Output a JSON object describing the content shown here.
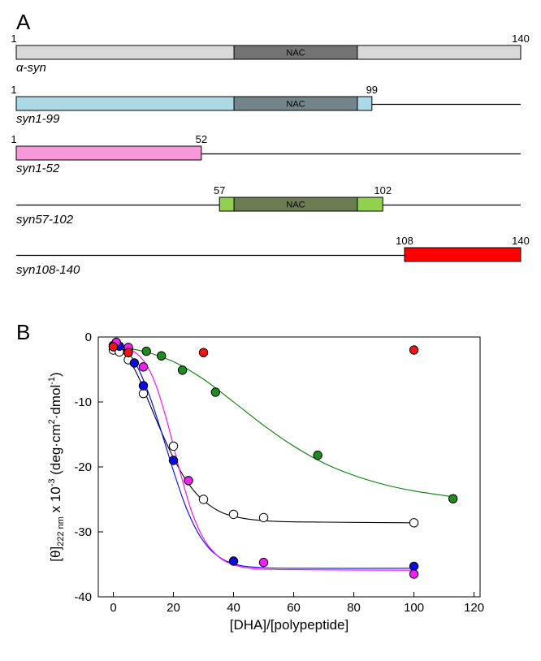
{
  "panel_a": {
    "letter": "A",
    "constructs": [
      {
        "name": "α-syn",
        "start_label": "1",
        "end_label": "140",
        "color": "#d9d9d9",
        "box": [
          1,
          140
        ],
        "nac": [
          61,
          95
        ],
        "nac_color": "#737373",
        "nac_label": "NAC",
        "baseline": false
      },
      {
        "name": "syn1-99",
        "start_label": "1",
        "end_label": "99",
        "color": "#add8e6",
        "box": [
          1,
          99
        ],
        "nac": [
          61,
          95
        ],
        "nac_color": "#73858a",
        "nac_label": "NAC",
        "baseline": true
      },
      {
        "name": "syn1-52",
        "start_label": "1",
        "end_label": "52",
        "color": "#f799d8",
        "box": [
          1,
          52
        ],
        "nac": null,
        "baseline": true
      },
      {
        "name": "syn57-102",
        "start_label": "57",
        "end_label": "102",
        "color": "#92d050",
        "box": [
          57,
          102
        ],
        "nac": [
          61,
          95
        ],
        "nac_color": "#6b7b52",
        "nac_label": "NAC",
        "baseline": true
      },
      {
        "name": "syn108-140",
        "start_label": "108",
        "end_label": "140",
        "color": "#ff0000",
        "box": [
          108,
          140
        ],
        "nac": null,
        "baseline": true
      }
    ]
  },
  "chart_data": {
    "letter": "B",
    "type": "scatter",
    "xlabel": "[DHA]/[polypeptide]",
    "ylabel": "[θ]",
    "ylabel_sub": "222 nm",
    "ylabel_rest": " x 10",
    "ylabel_exp": "-3",
    "ylabel_units": " (deg·cm",
    "ylabel_units_exp": "2",
    "ylabel_units2": "·dmol",
    "ylabel_units2_exp": "-1",
    "ylabel_close": ")",
    "xlim": [
      -5,
      122
    ],
    "ylim": [
      -40,
      0
    ],
    "xticks": [
      0,
      20,
      40,
      60,
      80,
      100,
      120
    ],
    "yticks": [
      0,
      -10,
      -20,
      -30,
      -40
    ],
    "grid": false,
    "series": [
      {
        "color": "#008000",
        "fill": "#1e8c1e",
        "line": "#008000",
        "points": [
          [
            0,
            -1.5
          ],
          [
            5,
            -1.8
          ],
          [
            11,
            -2.2
          ],
          [
            16,
            -2.9
          ],
          [
            23,
            -5.1
          ],
          [
            34,
            -8.5
          ],
          [
            68,
            -18.2
          ],
          [
            113,
            -24.9
          ]
        ],
        "curve": [
          [
            0,
            -1.4
          ],
          [
            10,
            -2.2
          ],
          [
            20,
            -3.8
          ],
          [
            30,
            -6.5
          ],
          [
            40,
            -10.0
          ],
          [
            50,
            -13.6
          ],
          [
            60,
            -16.8
          ],
          [
            70,
            -19.4
          ],
          [
            80,
            -21.3
          ],
          [
            90,
            -22.7
          ],
          [
            100,
            -23.7
          ],
          [
            113,
            -24.6
          ]
        ]
      },
      {
        "color": "#ffffff",
        "fill": "#ffffff",
        "line": "#000000",
        "points": [
          [
            0,
            -2.0
          ],
          [
            2,
            -2.3
          ],
          [
            5,
            -3.5
          ],
          [
            10,
            -8.7
          ],
          [
            20,
            -16.8
          ],
          [
            30,
            -25.0
          ],
          [
            40,
            -27.3
          ],
          [
            50,
            -27.8
          ],
          [
            100,
            -28.6
          ]
        ],
        "curve": [
          [
            0,
            -1.6
          ],
          [
            4,
            -2.8
          ],
          [
            8,
            -5.8
          ],
          [
            12,
            -10.2
          ],
          [
            16,
            -14.6
          ],
          [
            20,
            -18.6
          ],
          [
            24,
            -21.9
          ],
          [
            28,
            -24.3
          ],
          [
            32,
            -25.9
          ],
          [
            36,
            -27.0
          ],
          [
            40,
            -27.6
          ],
          [
            46,
            -28.1
          ],
          [
            55,
            -28.4
          ],
          [
            70,
            -28.5
          ],
          [
            100,
            -28.6
          ]
        ]
      },
      {
        "color": "#0000e0",
        "fill": "#0a0ae6",
        "line": "#0000ff",
        "points": [
          [
            0,
            -1.3
          ],
          [
            2,
            -1.4
          ],
          [
            5,
            -1.8
          ],
          [
            7,
            -4.0
          ],
          [
            10,
            -7.5
          ],
          [
            20,
            -19.0
          ],
          [
            40,
            -34.5
          ],
          [
            100,
            -35.3
          ]
        ],
        "curve": [
          [
            0,
            -1.2
          ],
          [
            4,
            -2.2
          ],
          [
            8,
            -4.6
          ],
          [
            12,
            -9.0
          ],
          [
            16,
            -14.6
          ],
          [
            20,
            -20.6
          ],
          [
            24,
            -26.0
          ],
          [
            28,
            -30.0
          ],
          [
            32,
            -32.6
          ],
          [
            36,
            -34.1
          ],
          [
            40,
            -34.9
          ],
          [
            46,
            -35.4
          ],
          [
            60,
            -35.6
          ],
          [
            100,
            -35.6
          ]
        ]
      },
      {
        "color": "#ff00ff",
        "fill": "#f020f0",
        "line": "#ff00ff",
        "points": [
          [
            1,
            -0.8
          ],
          [
            5,
            -1.6
          ],
          [
            10,
            -4.6
          ],
          [
            25,
            -22.1
          ],
          [
            50,
            -34.7
          ],
          [
            100,
            -36.5
          ]
        ],
        "curve": [
          [
            0,
            -1.0
          ],
          [
            5,
            -1.7
          ],
          [
            10,
            -3.6
          ],
          [
            14,
            -7.2
          ],
          [
            18,
            -13.2
          ],
          [
            22,
            -20.4
          ],
          [
            26,
            -26.8
          ],
          [
            30,
            -31.0
          ],
          [
            34,
            -33.4
          ],
          [
            38,
            -34.7
          ],
          [
            44,
            -35.5
          ],
          [
            55,
            -35.8
          ],
          [
            100,
            -35.9
          ]
        ]
      },
      {
        "color": "#ff0000",
        "fill": "#f21414",
        "line": null,
        "points": [
          [
            0,
            -1.5
          ],
          [
            5,
            -2.4
          ],
          [
            30,
            -2.4
          ],
          [
            100,
            -2.0
          ]
        ],
        "curve": null
      }
    ]
  }
}
